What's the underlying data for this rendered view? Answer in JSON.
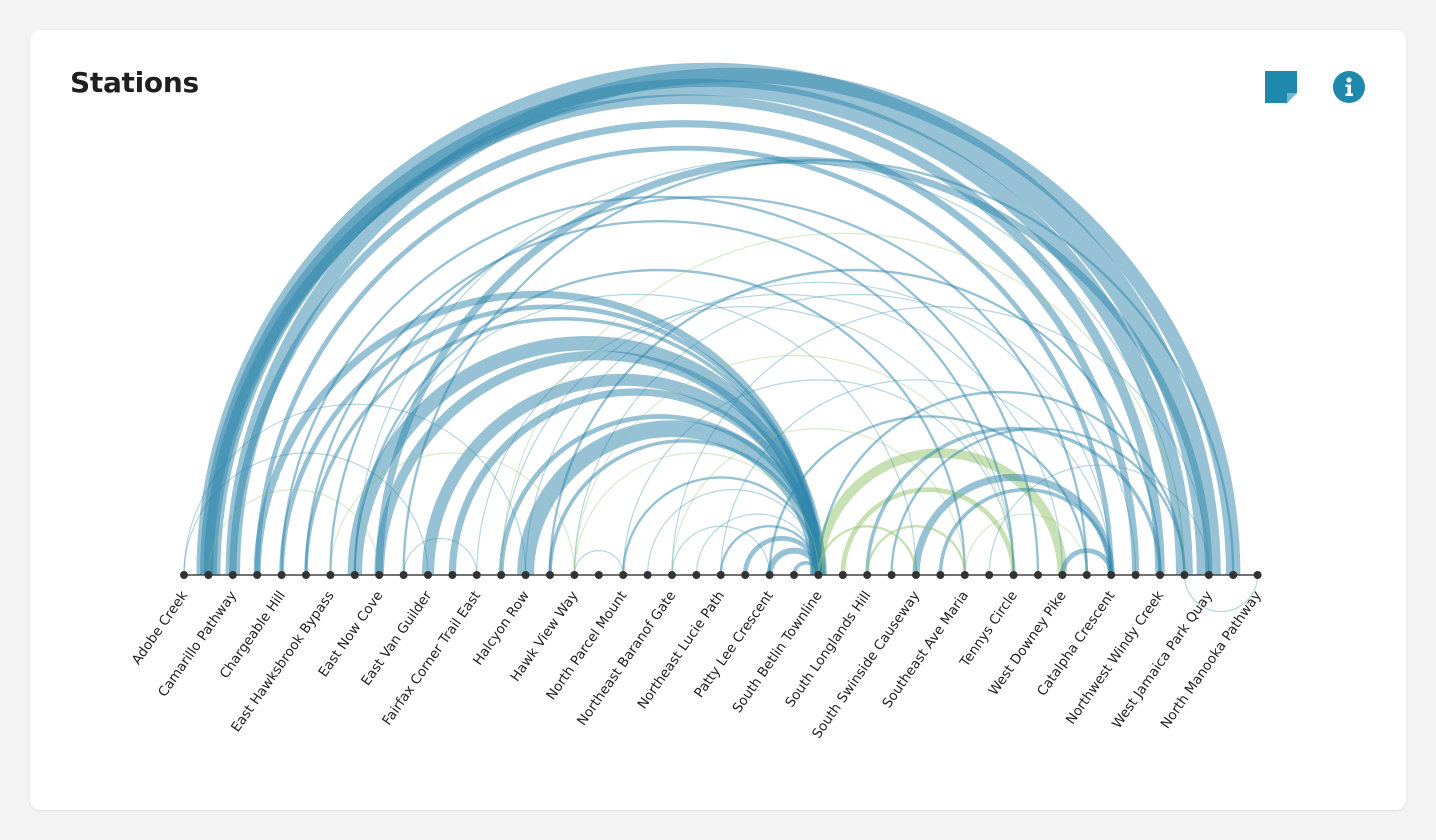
{
  "card": {
    "title": "Stations"
  },
  "icons": {
    "note": "sticky-note-icon",
    "info": "info-icon"
  },
  "colors": {
    "accent": "#1f89ad",
    "arc_blue": "#2f86ab",
    "arc_green": "#8fc46b",
    "axis": "#444444",
    "node": "#333333"
  },
  "nodes": [
    {
      "name": "Adobe Creek",
      "labeled": true
    },
    {
      "name": "",
      "labeled": false
    },
    {
      "name": "Camarillo Pathway",
      "labeled": true
    },
    {
      "name": "",
      "labeled": false
    },
    {
      "name": "Chargeable Hill",
      "labeled": true
    },
    {
      "name": "",
      "labeled": false
    },
    {
      "name": "East Hawksbrook Bypass",
      "labeled": true
    },
    {
      "name": "",
      "labeled": false
    },
    {
      "name": "East Now Cove",
      "labeled": true
    },
    {
      "name": "",
      "labeled": false
    },
    {
      "name": "East Van Guilder",
      "labeled": true
    },
    {
      "name": "",
      "labeled": false
    },
    {
      "name": "Fairfax Corner Trail East",
      "labeled": true
    },
    {
      "name": "",
      "labeled": false
    },
    {
      "name": "Halcyon Row",
      "labeled": true
    },
    {
      "name": "",
      "labeled": false
    },
    {
      "name": "Hawk View Way",
      "labeled": true
    },
    {
      "name": "",
      "labeled": false
    },
    {
      "name": "North Parcel Mount",
      "labeled": true
    },
    {
      "name": "",
      "labeled": false
    },
    {
      "name": "Northeast Baranof Gate",
      "labeled": true
    },
    {
      "name": "",
      "labeled": false
    },
    {
      "name": "Northeast Lucie Path",
      "labeled": true
    },
    {
      "name": "",
      "labeled": false
    },
    {
      "name": "Patty Lee Crescent",
      "labeled": true
    },
    {
      "name": "",
      "labeled": false
    },
    {
      "name": "South Betlin Townline",
      "labeled": true
    },
    {
      "name": "",
      "labeled": false
    },
    {
      "name": "South Longlands Hill",
      "labeled": true
    },
    {
      "name": "",
      "labeled": false
    },
    {
      "name": "South Swinside Causeway",
      "labeled": true
    },
    {
      "name": "",
      "labeled": false
    },
    {
      "name": "Southeast Ave Maria",
      "labeled": true
    },
    {
      "name": "",
      "labeled": false
    },
    {
      "name": "Tennys Circle",
      "labeled": true
    },
    {
      "name": "",
      "labeled": false
    },
    {
      "name": "West Downey Pike",
      "labeled": true
    },
    {
      "name": "",
      "labeled": false
    },
    {
      "name": "Catalpha Crescent",
      "labeled": true
    },
    {
      "name": "",
      "labeled": false
    },
    {
      "name": "Northwest Windy Creek",
      "labeled": true
    },
    {
      "name": "",
      "labeled": false
    },
    {
      "name": "West Jamaica Park Quay",
      "labeled": true
    },
    {
      "name": "",
      "labeled": false
    },
    {
      "name": "North Manooka Pathway",
      "labeled": true
    }
  ],
  "links": [
    {
      "source": 1,
      "target": 42,
      "value": 20,
      "group": "blue"
    },
    {
      "source": 1,
      "target": 41,
      "value": 14,
      "group": "blue"
    },
    {
      "source": 1,
      "target": 40,
      "value": 8,
      "group": "blue"
    },
    {
      "source": 2,
      "target": 43,
      "value": 12,
      "group": "blue"
    },
    {
      "source": 2,
      "target": 39,
      "value": 6,
      "group": "blue"
    },
    {
      "source": 3,
      "target": 38,
      "value": 4,
      "group": "blue"
    },
    {
      "source": 4,
      "target": 35,
      "value": 2,
      "group": "blue"
    },
    {
      "source": 5,
      "target": 34,
      "value": 2,
      "group": "blue"
    },
    {
      "source": 6,
      "target": 37,
      "value": 2,
      "group": "blue"
    },
    {
      "source": 7,
      "target": 41,
      "value": 1,
      "group": "blue"
    },
    {
      "source": 9,
      "target": 43,
      "value": 2,
      "group": "blue"
    },
    {
      "source": 8,
      "target": 42,
      "value": 6,
      "group": "blue"
    },
    {
      "source": 3,
      "target": 26,
      "value": 6,
      "group": "blue"
    },
    {
      "source": 4,
      "target": 26,
      "value": 4,
      "group": "blue"
    },
    {
      "source": 5,
      "target": 26,
      "value": 3,
      "group": "blue"
    },
    {
      "source": 7,
      "target": 26,
      "value": 12,
      "group": "blue"
    },
    {
      "source": 8,
      "target": 26,
      "value": 8,
      "group": "blue"
    },
    {
      "source": 10,
      "target": 26,
      "value": 10,
      "group": "blue"
    },
    {
      "source": 11,
      "target": 26,
      "value": 6,
      "group": "blue"
    },
    {
      "source": 13,
      "target": 26,
      "value": 4,
      "group": "blue"
    },
    {
      "source": 14,
      "target": 26,
      "value": 14,
      "group": "blue"
    },
    {
      "source": 15,
      "target": 26,
      "value": 3,
      "group": "blue"
    },
    {
      "source": 18,
      "target": 26,
      "value": 2,
      "group": "blue"
    },
    {
      "source": 19,
      "target": 26,
      "value": 1,
      "group": "blue"
    },
    {
      "source": 21,
      "target": 26,
      "value": 1,
      "group": "blue"
    },
    {
      "source": 22,
      "target": 26,
      "value": 2,
      "group": "blue"
    },
    {
      "source": 23,
      "target": 26,
      "value": 4,
      "group": "blue"
    },
    {
      "source": 24,
      "target": 26,
      "value": 5,
      "group": "blue"
    },
    {
      "source": 25,
      "target": 26,
      "value": 3,
      "group": "blue"
    },
    {
      "source": 7,
      "target": 32,
      "value": 2,
      "group": "blue"
    },
    {
      "source": 7,
      "target": 30,
      "value": 1,
      "group": "blue"
    },
    {
      "source": 12,
      "target": 34,
      "value": 1,
      "group": "blue"
    },
    {
      "source": 13,
      "target": 36,
      "value": 1,
      "group": "blue"
    },
    {
      "source": 14,
      "target": 38,
      "value": 1,
      "group": "blue"
    },
    {
      "source": 15,
      "target": 40,
      "value": 2,
      "group": "blue"
    },
    {
      "source": 16,
      "target": 39,
      "value": 1,
      "group": "blue"
    },
    {
      "source": 20,
      "target": 42,
      "value": 1,
      "group": "blue"
    },
    {
      "source": 22,
      "target": 38,
      "value": 1,
      "group": "blue"
    },
    {
      "source": 18,
      "target": 34,
      "value": 1,
      "group": "blue"
    },
    {
      "source": 28,
      "target": 40,
      "value": 3,
      "group": "blue"
    },
    {
      "source": 29,
      "target": 41,
      "value": 2,
      "group": "blue"
    },
    {
      "source": 30,
      "target": 38,
      "value": 6,
      "group": "blue"
    },
    {
      "source": 31,
      "target": 38,
      "value": 3,
      "group": "blue"
    },
    {
      "source": 36,
      "target": 38,
      "value": 4,
      "group": "blue"
    },
    {
      "source": 24,
      "target": 37,
      "value": 2,
      "group": "blue"
    },
    {
      "source": 26,
      "target": 41,
      "value": 2,
      "group": "blue"
    },
    {
      "source": 33,
      "target": 42,
      "value": 1,
      "group": "blue"
    },
    {
      "source": 0,
      "target": 10,
      "value": 1,
      "group": "blue"
    },
    {
      "source": 0,
      "target": 14,
      "value": 1,
      "group": "blue"
    },
    {
      "source": 9,
      "target": 12,
      "value": 1,
      "group": "blue"
    },
    {
      "source": 16,
      "target": 18,
      "value": 1,
      "group": "blue"
    },
    {
      "source": 20,
      "target": 24,
      "value": 1,
      "group": "blue"
    },
    {
      "source": 44,
      "target": 41,
      "value": 1,
      "group": "blue"
    },
    {
      "source": 26,
      "target": 36,
      "value": 8,
      "group": "green"
    },
    {
      "source": 27,
      "target": 34,
      "value": 4,
      "group": "green"
    },
    {
      "source": 28,
      "target": 32,
      "value": 2,
      "group": "green"
    },
    {
      "source": 26,
      "target": 30,
      "value": 2,
      "group": "green"
    },
    {
      "source": 16,
      "target": 26,
      "value": 1,
      "group": "green"
    },
    {
      "source": 16,
      "target": 34,
      "value": 1,
      "group": "green"
    },
    {
      "source": 6,
      "target": 16,
      "value": 1,
      "group": "green"
    },
    {
      "source": 1,
      "target": 8,
      "value": 1,
      "group": "green"
    },
    {
      "source": 13,
      "target": 41,
      "value": 1,
      "group": "green"
    },
    {
      "source": 20,
      "target": 32,
      "value": 1,
      "group": "green"
    },
    {
      "source": 32,
      "target": 37,
      "value": 1,
      "group": "green"
    }
  ]
}
